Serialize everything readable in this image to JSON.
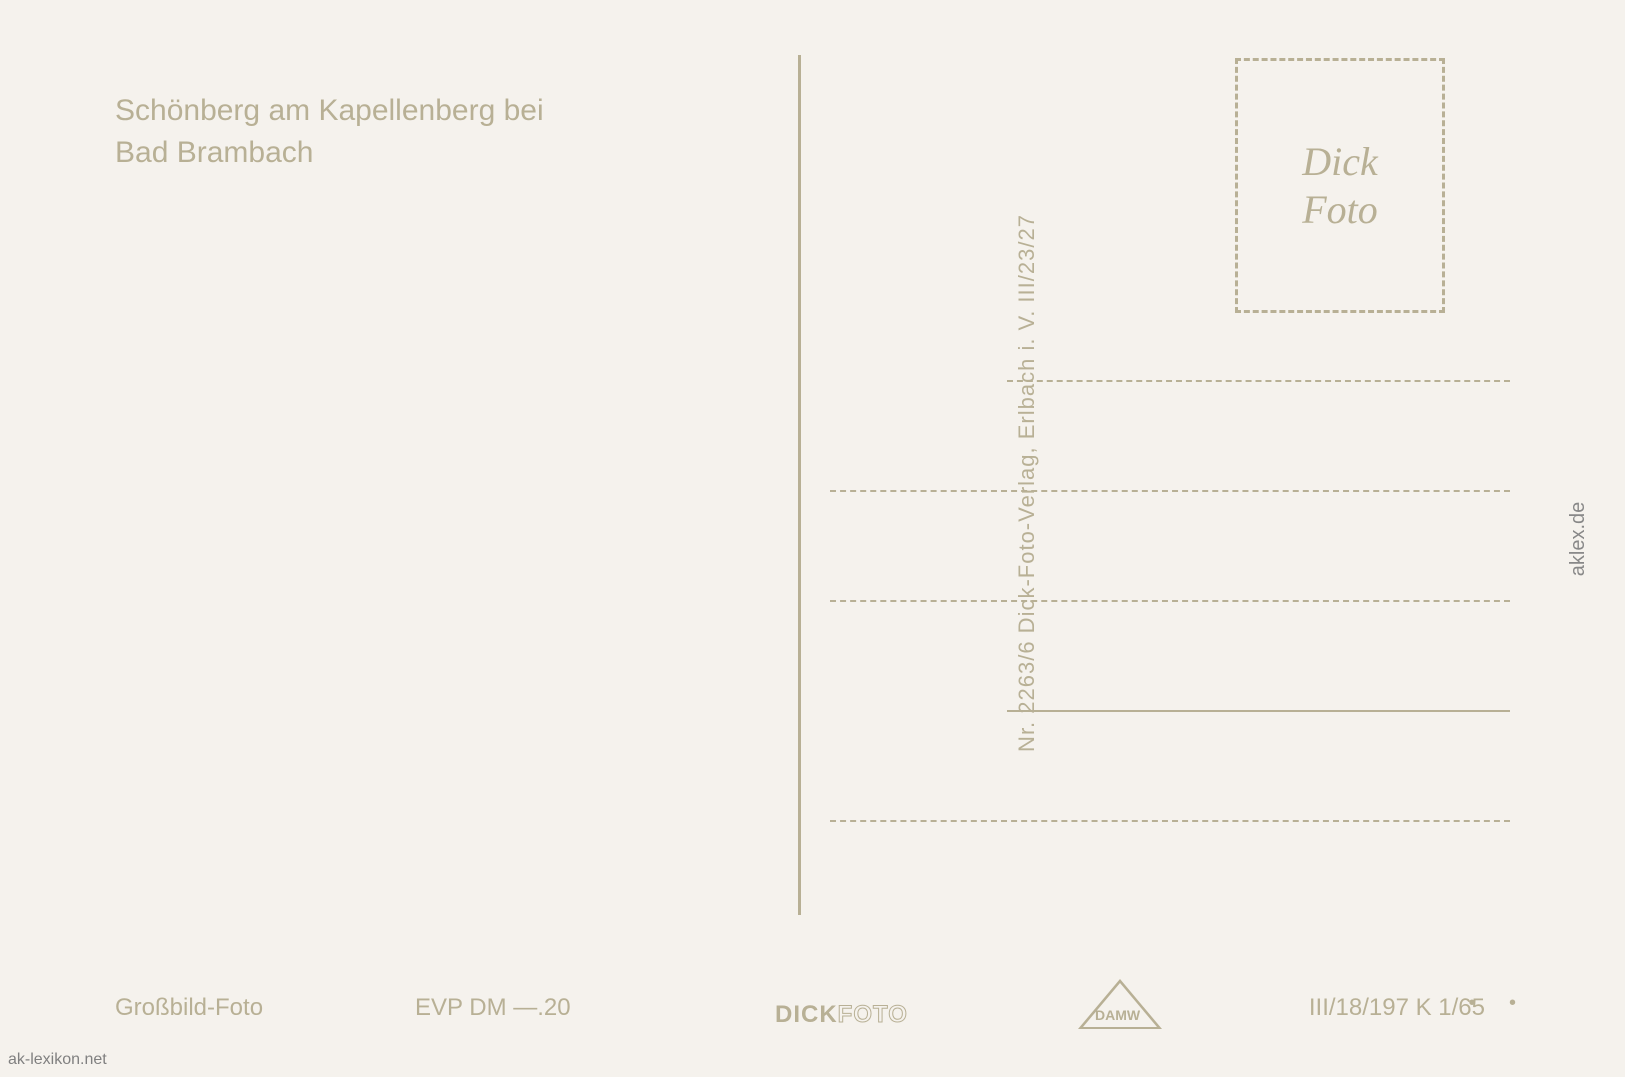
{
  "postcard": {
    "title_line1": "Schönberg am Kapellenberg bei",
    "title_line2": "Bad Brambach",
    "vertical_text": "Nr. 2263/6  Dick-Foto-Verlag, Erlbach i. V.  III/23/27",
    "stamp": {
      "line1": "Dick",
      "line2": "Foto"
    },
    "bottom": {
      "label": "Großbild-Foto",
      "price": "EVP DM —.20",
      "logo_text": "DICK",
      "logo_outline": "FOTO",
      "damw": "DAMW",
      "code": "III/18/197  K 1/65",
      "dots": "• •"
    },
    "watermark": "aklex.de",
    "site_link": "ak-lexikon.net",
    "colors": {
      "background": "#f5f2ed",
      "text": "#b8b095",
      "watermark": "#888888"
    },
    "address": {
      "line_count": 5
    }
  }
}
